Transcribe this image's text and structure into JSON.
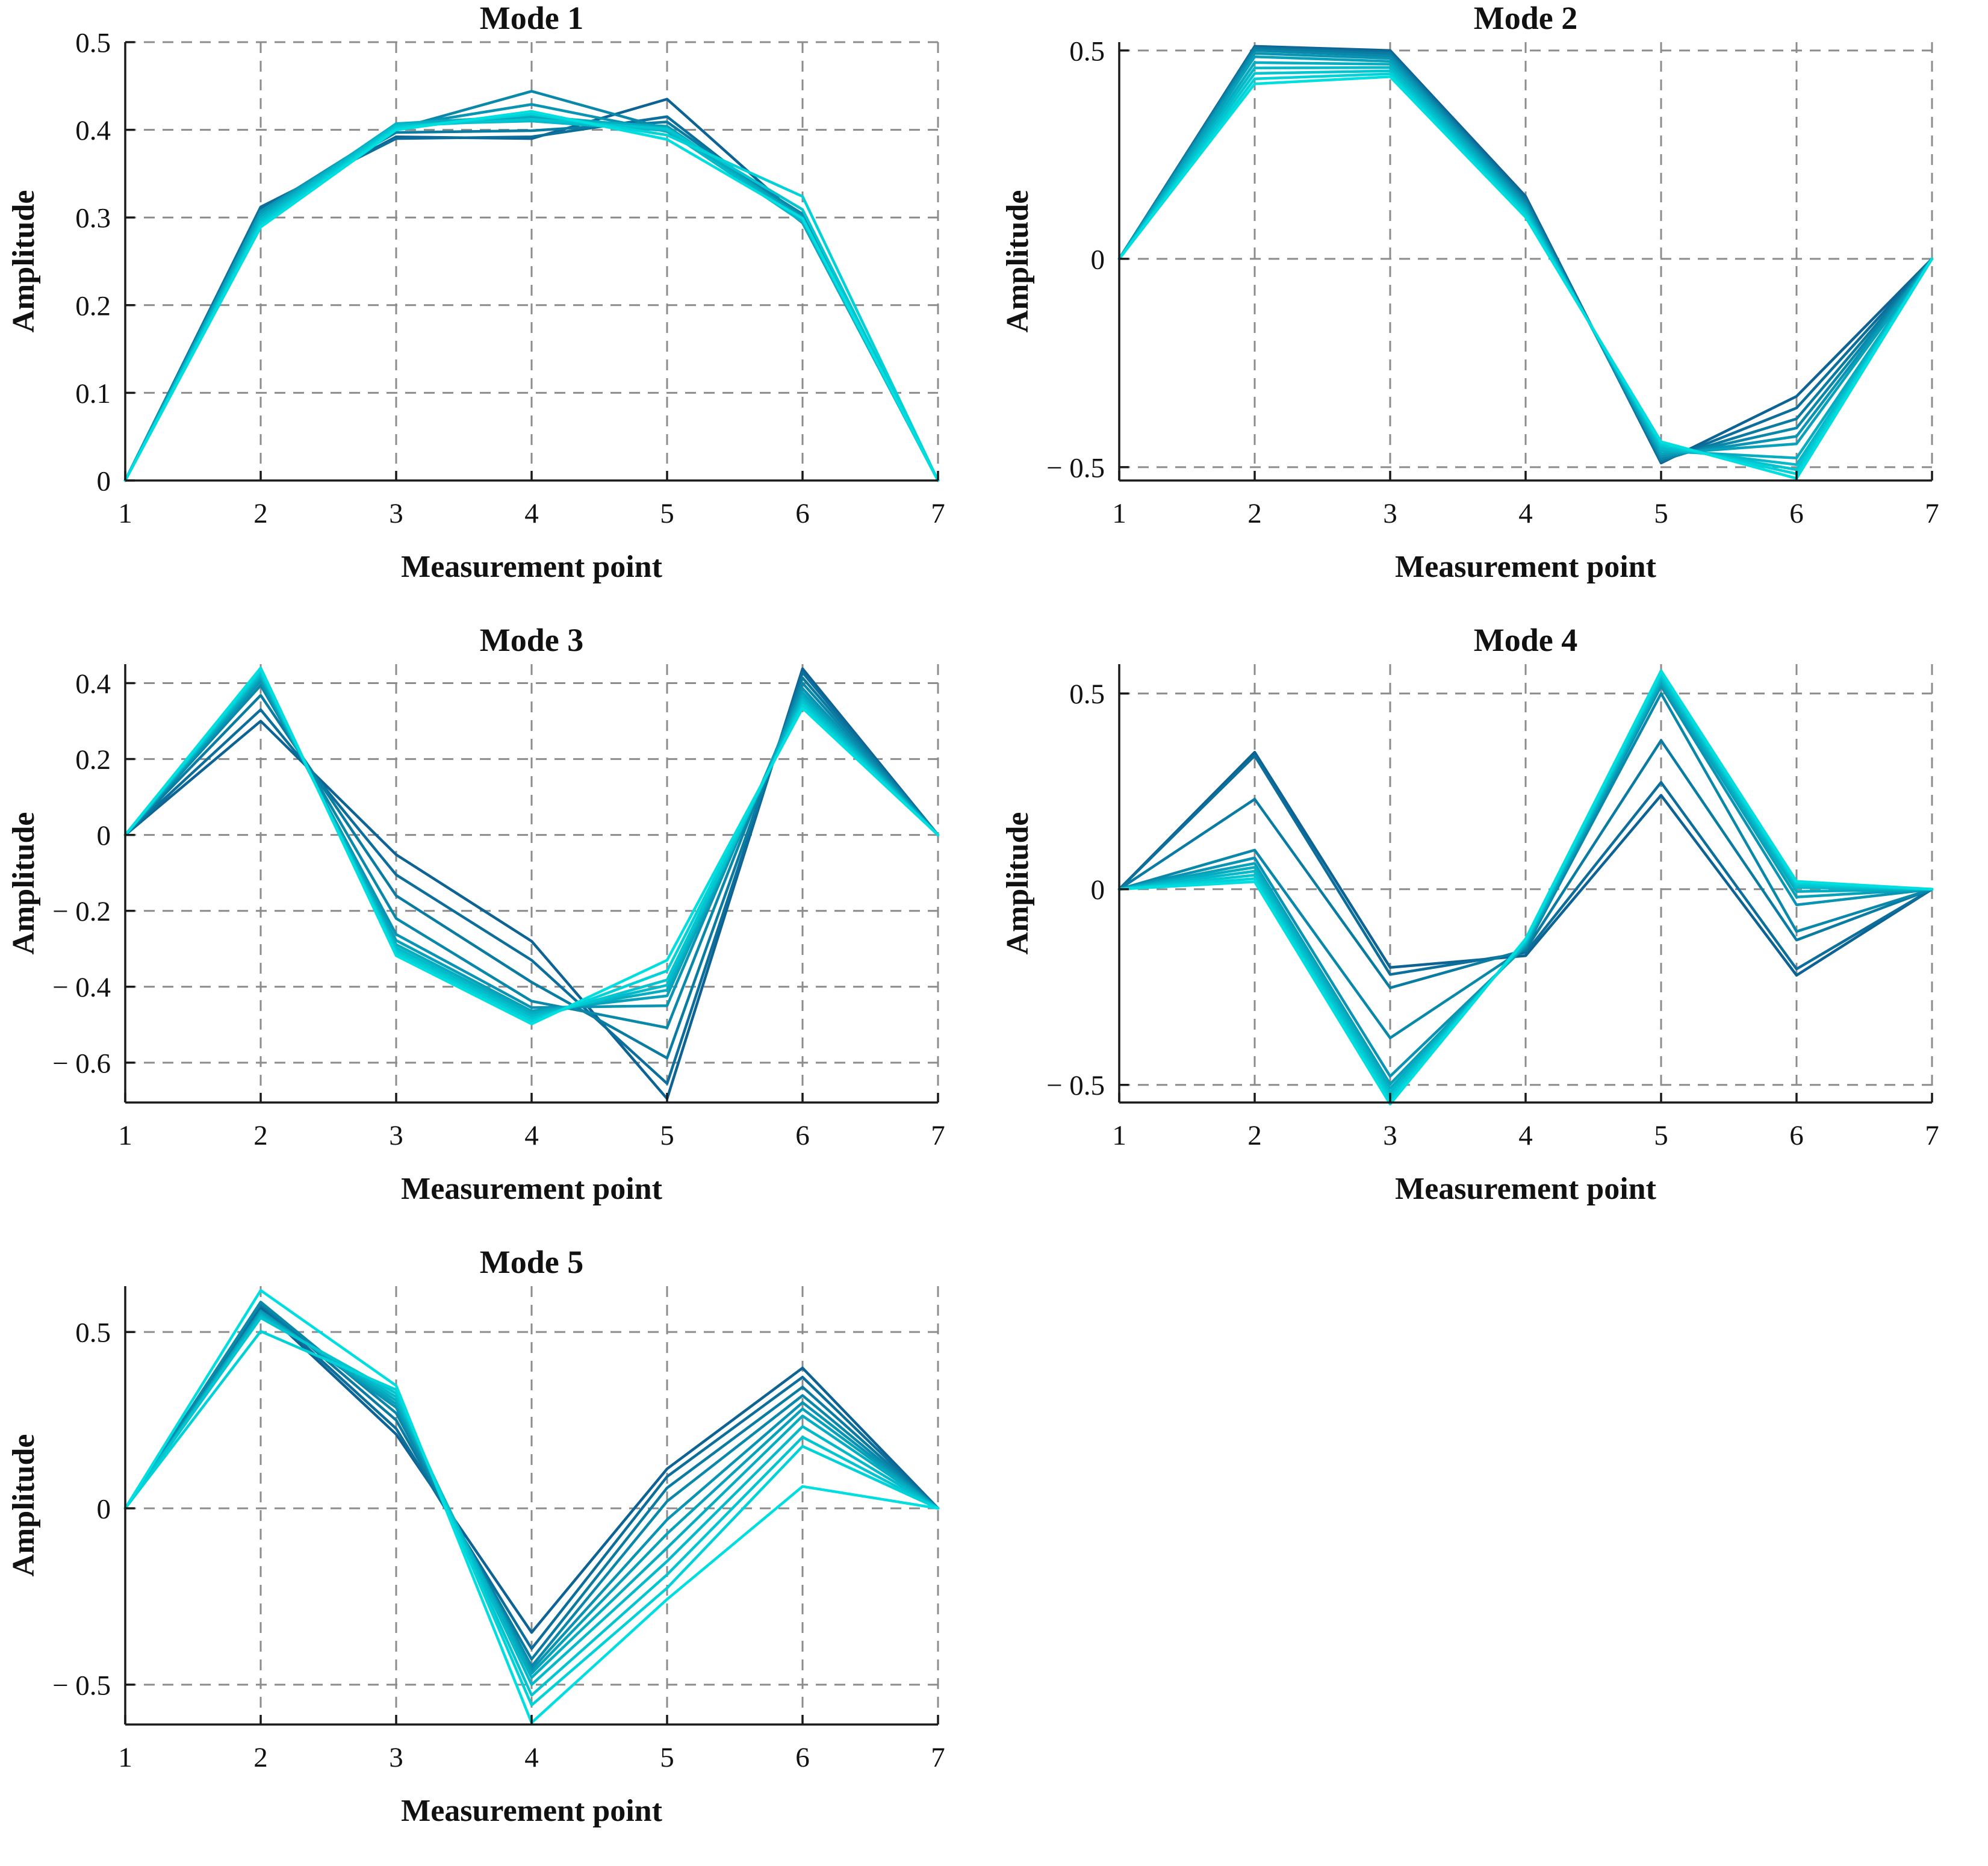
{
  "figure": {
    "layout": {
      "rows": 3,
      "cols": 2,
      "empty_cells": 1
    },
    "colors": {
      "background": "#ffffff",
      "grid_line": "#8c8c8c",
      "axis_line": "#1a1a1a",
      "text": "#111111",
      "series_gradient_dark": "#0D6393",
      "series_gradient_cyan": "#00DEE0"
    }
  },
  "chart_data": [
    {
      "type": "line",
      "title": "Mode 1",
      "xlabel": "Measurement point",
      "ylabel": "Amplitude",
      "x": [
        1,
        2,
        3,
        4,
        5,
        6,
        7
      ],
      "xlim": [
        1,
        7
      ],
      "ylim": [
        0,
        0.5
      ],
      "grid": true,
      "legend": false,
      "xticks": [
        {
          "v": 1,
          "label": "1"
        },
        {
          "v": 2,
          "label": "2"
        },
        {
          "v": 3,
          "label": "3"
        },
        {
          "v": 4,
          "label": "4"
        },
        {
          "v": 5,
          "label": "5"
        },
        {
          "v": 6,
          "label": "6"
        },
        {
          "v": 7,
          "label": "7"
        }
      ],
      "yticks": [
        {
          "v": 0,
          "label": "0"
        },
        {
          "v": 0.1,
          "label": "0.1"
        },
        {
          "v": 0.2,
          "label": "0.2"
        },
        {
          "v": 0.3,
          "label": "0.3"
        },
        {
          "v": 0.4,
          "label": "0.4"
        },
        {
          "v": 0.5,
          "label": "0.5"
        }
      ],
      "series": [
        {
          "color": "#0D6393",
          "values": [
            0,
            0.31,
            0.392,
            0.39,
            0.435,
            0.297,
            0
          ]
        },
        {
          "color": "#0C6F9B",
          "values": [
            0,
            0.312,
            0.39,
            0.392,
            0.415,
            0.294,
            0
          ]
        },
        {
          "color": "#0A7CA2",
          "values": [
            0,
            0.308,
            0.397,
            0.399,
            0.409,
            0.299,
            0
          ]
        },
        {
          "color": "#0988AA",
          "values": [
            0,
            0.306,
            0.401,
            0.444,
            0.401,
            0.304,
            0
          ]
        },
        {
          "color": "#0894B2",
          "values": [
            0,
            0.307,
            0.404,
            0.429,
            0.398,
            0.301,
            0
          ]
        },
        {
          "color": "#07A1BA",
          "values": [
            0,
            0.304,
            0.405,
            0.413,
            0.404,
            0.299,
            0
          ]
        },
        {
          "color": "#05ADC1",
          "values": [
            0,
            0.301,
            0.407,
            0.416,
            0.402,
            0.297,
            0
          ]
        },
        {
          "color": "#04B9C9",
          "values": [
            0,
            0.298,
            0.406,
            0.41,
            0.399,
            0.295,
            0
          ]
        },
        {
          "color": "#03C5D0",
          "values": [
            0,
            0.295,
            0.404,
            0.412,
            0.401,
            0.309,
            0
          ]
        },
        {
          "color": "#01D2D8",
          "values": [
            0,
            0.292,
            0.402,
            0.418,
            0.394,
            0.324,
            0
          ]
        },
        {
          "color": "#00DEE0",
          "values": [
            0,
            0.289,
            0.4,
            0.421,
            0.389,
            0.299,
            0
          ]
        }
      ]
    },
    {
      "type": "line",
      "title": "Mode 2",
      "xlabel": "Measurement point",
      "ylabel": "Amplitude",
      "x": [
        1,
        2,
        3,
        4,
        5,
        6,
        7
      ],
      "xlim": [
        1,
        7
      ],
      "ylim": [
        -0.532,
        0.52
      ],
      "grid": true,
      "legend": false,
      "xticks": [
        {
          "v": 1,
          "label": "1"
        },
        {
          "v": 2,
          "label": "2"
        },
        {
          "v": 3,
          "label": "3"
        },
        {
          "v": 4,
          "label": "4"
        },
        {
          "v": 5,
          "label": "5"
        },
        {
          "v": 6,
          "label": "6"
        },
        {
          "v": 7,
          "label": "7"
        }
      ],
      "yticks": [
        {
          "v": -0.5,
          "label": "− 0.5"
        },
        {
          "v": 0,
          "label": "0"
        },
        {
          "v": 0.5,
          "label": "0.5"
        }
      ],
      "series": [
        {
          "color": "#0D6393",
          "values": [
            0,
            0.51,
            0.5,
            0.15,
            -0.49,
            -0.33,
            0
          ]
        },
        {
          "color": "#0C6F9B",
          "values": [
            0,
            0.508,
            0.496,
            0.145,
            -0.487,
            -0.358,
            0
          ]
        },
        {
          "color": "#0A7CA2",
          "values": [
            0,
            0.505,
            0.492,
            0.14,
            -0.484,
            -0.384,
            0
          ]
        },
        {
          "color": "#0988AA",
          "values": [
            0,
            0.5,
            0.487,
            0.135,
            -0.479,
            -0.406,
            0
          ]
        },
        {
          "color": "#0894B2",
          "values": [
            0,
            0.493,
            0.481,
            0.13,
            -0.474,
            -0.426,
            0
          ]
        },
        {
          "color": "#07A1BA",
          "values": [
            0,
            0.485,
            0.474,
            0.125,
            -0.468,
            -0.444,
            0
          ]
        },
        {
          "color": "#05ADC1",
          "values": [
            0,
            0.471,
            0.467,
            0.12,
            -0.461,
            -0.478,
            0
          ]
        },
        {
          "color": "#04B9C9",
          "values": [
            0,
            0.458,
            0.459,
            0.115,
            -0.455,
            -0.494,
            0
          ]
        },
        {
          "color": "#03C5D0",
          "values": [
            0,
            0.445,
            0.451,
            0.11,
            -0.449,
            -0.506,
            0
          ]
        },
        {
          "color": "#01D2D8",
          "values": [
            0,
            0.432,
            0.444,
            0.105,
            -0.444,
            -0.516,
            0
          ]
        },
        {
          "color": "#00DEE0",
          "values": [
            0,
            0.42,
            0.437,
            0.1,
            -0.439,
            -0.527,
            0
          ]
        }
      ]
    },
    {
      "type": "line",
      "title": "Mode 3",
      "xlabel": "Measurement point",
      "ylabel": "Amplitude",
      "x": [
        1,
        2,
        3,
        4,
        5,
        6,
        7
      ],
      "xlim": [
        1,
        7
      ],
      "ylim": [
        -0.705,
        0.45
      ],
      "grid": true,
      "legend": false,
      "xticks": [
        {
          "v": 1,
          "label": "1"
        },
        {
          "v": 2,
          "label": "2"
        },
        {
          "v": 3,
          "label": "3"
        },
        {
          "v": 4,
          "label": "4"
        },
        {
          "v": 5,
          "label": "5"
        },
        {
          "v": 6,
          "label": "6"
        },
        {
          "v": 7,
          "label": "7"
        }
      ],
      "yticks": [
        {
          "v": -0.6,
          "label": "− 0.6"
        },
        {
          "v": -0.4,
          "label": "− 0.4"
        },
        {
          "v": -0.2,
          "label": "− 0.2"
        },
        {
          "v": 0,
          "label": "0"
        },
        {
          "v": 0.2,
          "label": "0.2"
        },
        {
          "v": 0.4,
          "label": "0.4"
        }
      ],
      "series": [
        {
          "color": "#0D6393",
          "values": [
            0,
            0.3,
            -0.052,
            -0.28,
            -0.695,
            0.438,
            0
          ]
        },
        {
          "color": "#0C6F9B",
          "values": [
            0,
            0.33,
            -0.105,
            -0.33,
            -0.655,
            0.428,
            0
          ]
        },
        {
          "color": "#0A7CA2",
          "values": [
            0,
            0.368,
            -0.16,
            -0.388,
            -0.588,
            0.414,
            0
          ]
        },
        {
          "color": "#0988AA",
          "values": [
            0,
            0.394,
            -0.22,
            -0.438,
            -0.508,
            0.4,
            0
          ]
        },
        {
          "color": "#0894B2",
          "values": [
            0,
            0.405,
            -0.262,
            -0.455,
            -0.45,
            0.386,
            0
          ]
        },
        {
          "color": "#07A1BA",
          "values": [
            0,
            0.414,
            -0.278,
            -0.464,
            -0.424,
            0.375,
            0
          ]
        },
        {
          "color": "#05ADC1",
          "values": [
            0,
            0.42,
            -0.289,
            -0.47,
            -0.409,
            0.366,
            0
          ]
        },
        {
          "color": "#04B9C9",
          "values": [
            0,
            0.425,
            -0.297,
            -0.477,
            -0.396,
            0.358,
            0
          ]
        },
        {
          "color": "#03C5D0",
          "values": [
            0,
            0.43,
            -0.304,
            -0.484,
            -0.382,
            0.35,
            0
          ]
        },
        {
          "color": "#01D2D8",
          "values": [
            0,
            0.435,
            -0.311,
            -0.491,
            -0.358,
            0.342,
            0
          ]
        },
        {
          "color": "#00DEE0",
          "values": [
            0,
            0.44,
            -0.318,
            -0.498,
            -0.33,
            0.334,
            0
          ]
        }
      ]
    },
    {
      "type": "line",
      "title": "Mode 4",
      "xlabel": "Measurement point",
      "ylabel": "Amplitude",
      "x": [
        1,
        2,
        3,
        4,
        5,
        6,
        7
      ],
      "xlim": [
        1,
        7
      ],
      "ylim": [
        -0.545,
        0.575
      ],
      "grid": true,
      "legend": false,
      "xticks": [
        {
          "v": 1,
          "label": "1"
        },
        {
          "v": 2,
          "label": "2"
        },
        {
          "v": 3,
          "label": "3"
        },
        {
          "v": 4,
          "label": "4"
        },
        {
          "v": 5,
          "label": "5"
        },
        {
          "v": 6,
          "label": "6"
        },
        {
          "v": 7,
          "label": "7"
        }
      ],
      "yticks": [
        {
          "v": -0.5,
          "label": "− 0.5"
        },
        {
          "v": 0,
          "label": "0"
        },
        {
          "v": 0.5,
          "label": "0.5"
        }
      ],
      "series": [
        {
          "color": "#0D6393",
          "values": [
            0,
            0.35,
            -0.2,
            -0.17,
            0.24,
            -0.22,
            0
          ]
        },
        {
          "color": "#0C6F9B",
          "values": [
            0,
            0.341,
            -0.218,
            -0.162,
            0.273,
            -0.204,
            0
          ]
        },
        {
          "color": "#0A7CA2",
          "values": [
            0,
            0.23,
            -0.252,
            -0.155,
            0.38,
            -0.13,
            0
          ]
        },
        {
          "color": "#0988AA",
          "values": [
            0,
            0.1,
            -0.38,
            -0.15,
            0.5,
            -0.108,
            0
          ]
        },
        {
          "color": "#0894B2",
          "values": [
            0,
            0.08,
            -0.478,
            -0.146,
            0.519,
            -0.04,
            0
          ]
        },
        {
          "color": "#07A1BA",
          "values": [
            0,
            0.066,
            -0.498,
            -0.142,
            0.528,
            -0.02,
            0
          ]
        },
        {
          "color": "#05ADC1",
          "values": [
            0,
            0.056,
            -0.509,
            -0.139,
            0.534,
            -0.006,
            0
          ]
        },
        {
          "color": "#04B9C9",
          "values": [
            0,
            0.046,
            -0.519,
            -0.136,
            0.54,
            0.004,
            0
          ]
        },
        {
          "color": "#03C5D0",
          "values": [
            0,
            0.036,
            -0.529,
            -0.133,
            0.547,
            0.01,
            0
          ]
        },
        {
          "color": "#01D2D8",
          "values": [
            0,
            0.027,
            -0.539,
            -0.13,
            0.552,
            0.015,
            0
          ]
        },
        {
          "color": "#00DEE0",
          "values": [
            0,
            0.019,
            -0.549,
            -0.127,
            0.558,
            0.02,
            0
          ]
        }
      ]
    },
    {
      "type": "line",
      "title": "Mode 5",
      "xlabel": "Measurement point",
      "ylabel": "Amplitude",
      "x": [
        1,
        2,
        3,
        4,
        5,
        6,
        7
      ],
      "xlim": [
        1,
        7
      ],
      "ylim": [
        -0.613,
        0.63
      ],
      "grid": true,
      "legend": false,
      "xticks": [
        {
          "v": 1,
          "label": "1"
        },
        {
          "v": 2,
          "label": "2"
        },
        {
          "v": 3,
          "label": "3"
        },
        {
          "v": 4,
          "label": "4"
        },
        {
          "v": 5,
          "label": "5"
        },
        {
          "v": 6,
          "label": "6"
        },
        {
          "v": 7,
          "label": "7"
        }
      ],
      "yticks": [
        {
          "v": -0.5,
          "label": "− 0.5"
        },
        {
          "v": 0,
          "label": "0"
        },
        {
          "v": 0.5,
          "label": "0.5"
        }
      ],
      "series": [
        {
          "color": "#0D6393",
          "values": [
            0,
            0.57,
            0.21,
            -0.352,
            0.112,
            0.398,
            0
          ]
        },
        {
          "color": "#0C6F9B",
          "values": [
            0,
            0.576,
            0.226,
            -0.398,
            0.09,
            0.372,
            0
          ]
        },
        {
          "color": "#0A7CA2",
          "values": [
            0,
            0.58,
            0.25,
            -0.428,
            0.058,
            0.344,
            0
          ]
        },
        {
          "color": "#0988AA",
          "values": [
            0,
            0.585,
            0.27,
            -0.448,
            0.02,
            0.32,
            0
          ]
        },
        {
          "color": "#0894B2",
          "values": [
            0,
            0.56,
            0.286,
            -0.458,
            -0.032,
            0.3,
            0
          ]
        },
        {
          "color": "#07A1BA",
          "values": [
            0,
            0.555,
            0.296,
            -0.468,
            -0.072,
            0.282,
            0
          ]
        },
        {
          "color": "#05ADC1",
          "values": [
            0,
            0.55,
            0.306,
            -0.48,
            -0.112,
            0.262,
            0
          ]
        },
        {
          "color": "#04B9C9",
          "values": [
            0,
            0.545,
            0.316,
            -0.5,
            -0.15,
            0.232,
            0
          ]
        },
        {
          "color": "#03C5D0",
          "values": [
            0,
            0.54,
            0.326,
            -0.53,
            -0.188,
            0.202,
            0
          ]
        },
        {
          "color": "#01D2D8",
          "values": [
            0,
            0.502,
            0.336,
            -0.558,
            -0.226,
            0.176,
            0
          ]
        },
        {
          "color": "#00DEE0",
          "values": [
            0,
            0.618,
            0.348,
            -0.608,
            -0.258,
            0.062,
            0
          ]
        }
      ]
    }
  ]
}
